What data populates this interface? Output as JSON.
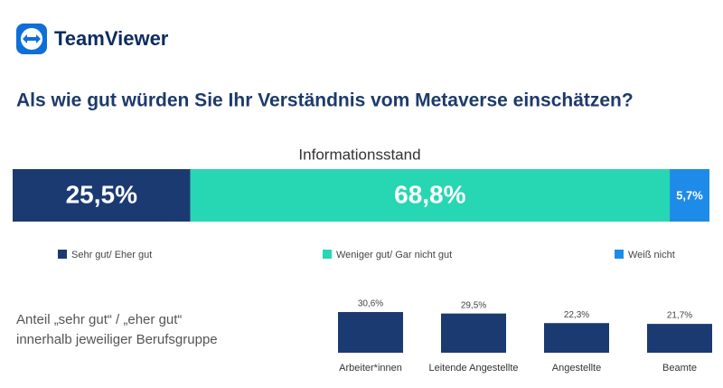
{
  "brand": "TeamViewer",
  "title": "Als wie gut würden Sie Ihr Verständnis vom Metaverse einschätzen?",
  "chart_data": [
    {
      "type": "stacked_bar",
      "title": "Informationsstand",
      "series": [
        {
          "name": "Sehr gut/ Eher gut",
          "color": "#1b3a72",
          "values": [
            25.5
          ],
          "value_labels": [
            "25,5%"
          ]
        },
        {
          "name": "Weniger gut/ Gar nicht gut",
          "color": "#27d6b3",
          "values": [
            68.8
          ],
          "value_labels": [
            "68,8%"
          ]
        },
        {
          "name": "Weiß nicht",
          "color": "#1f8be8",
          "values": [
            5.7
          ],
          "value_labels": [
            "5,7%"
          ]
        }
      ]
    },
    {
      "type": "bar",
      "title": "Anteil „sehr gut“ / „eher gut“ innerhalb jeweiliger Berufsgruppe",
      "categories": [
        "Arbeiter*innen",
        "Leitende Angestellte",
        "Angestellte",
        "Beamte"
      ],
      "values": [
        30.6,
        29.5,
        22.3,
        21.7
      ],
      "value_labels": [
        "30,6%",
        "29,5%",
        "22,3%",
        "21,7%"
      ],
      "color": "#1b3a72"
    }
  ]
}
